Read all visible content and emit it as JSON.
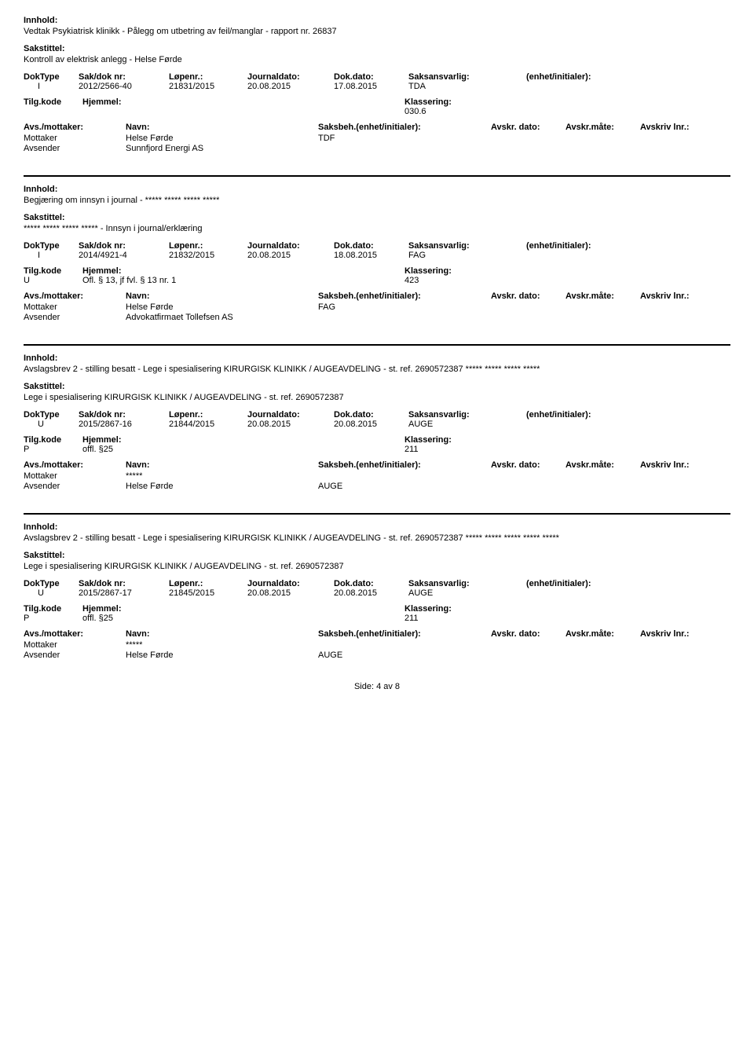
{
  "labels": {
    "innhold": "Innhold:",
    "sakstittel": "Sakstittel:",
    "doktype": "DokType",
    "sakdok": "Sak/dok nr:",
    "lopenr": "Løpenr.:",
    "journaldato": "Journaldato:",
    "dokdato": "Dok.dato:",
    "saksansvarlig": "Saksansvarlig:",
    "enhet": "(enhet/initialer):",
    "tilgkode": "Tilg.kode",
    "hjemmel": "Hjemmel:",
    "klassering": "Klassering:",
    "avsmottaker": "Avs./mottaker:",
    "navn": "Navn:",
    "saksbeh": "Saksbeh.(enhet/initialer):",
    "avskrdato": "Avskr. dato:",
    "avskrmate": "Avskr.måte:",
    "avskrlnr": "Avskriv lnr.:",
    "mottaker": "Mottaker",
    "avsender": "Avsender"
  },
  "records": [
    {
      "innhold": "Vedtak  Psykiatrisk klinikk - Pålegg om utbetring av feil/manglar - rapport nr. 26837",
      "sakstittel": "Kontroll av elektrisk anlegg - Helse Førde",
      "doktype": "I",
      "sakdok": "2012/2566-40",
      "lopenr": "21831/2015",
      "jdato": "20.08.2015",
      "ddato": "17.08.2015",
      "saksansv": "TDA",
      "tilg": "",
      "hjemmel": "",
      "klass": "030.6",
      "mottaker_name": "Helse Førde",
      "mottaker_code": "TDF",
      "avsender_name": "Sunnfjord Energi AS",
      "avsender_code": ""
    },
    {
      "innhold": "Begjæring om innsyn i journal - ***** ***** ***** *****",
      "sakstittel": "***** ***** ***** ***** - Innsyn i journal/erklæring",
      "doktype": "I",
      "sakdok": "2014/4921-4",
      "lopenr": "21832/2015",
      "jdato": "20.08.2015",
      "ddato": "18.08.2015",
      "saksansv": "FAG",
      "tilg": "U",
      "hjemmel": "Ofl. § 13, jf fvl. § 13 nr. 1",
      "klass": "423",
      "mottaker_name": "Helse Førde",
      "mottaker_code": "FAG",
      "avsender_name": "Advokatfirmaet Tollefsen AS",
      "avsender_code": ""
    },
    {
      "innhold": "Avslagsbrev 2 - stilling besatt - Lege i spesialisering KIRURGISK KLINIKK / AUGEAVDELING - st. ref. 2690572387 ***** ***** ***** *****",
      "sakstittel": "Lege i spesialisering KIRURGISK KLINIKK / AUGEAVDELING - st. ref. 2690572387",
      "doktype": "U",
      "sakdok": "2015/2867-16",
      "lopenr": "21844/2015",
      "jdato": "20.08.2015",
      "ddato": "20.08.2015",
      "saksansv": "AUGE",
      "tilg": "P",
      "hjemmel": "offl. §25",
      "klass": "211",
      "mottaker_name": "*****",
      "mottaker_code": "",
      "avsender_name": "Helse Førde",
      "avsender_code": "AUGE"
    },
    {
      "innhold": "Avslagsbrev 2 - stilling besatt - Lege i spesialisering KIRURGISK KLINIKK / AUGEAVDELING - st. ref. 2690572387 ***** ***** ***** ***** *****",
      "sakstittel": "Lege i spesialisering KIRURGISK KLINIKK / AUGEAVDELING - st. ref. 2690572387",
      "doktype": "U",
      "sakdok": "2015/2867-17",
      "lopenr": "21845/2015",
      "jdato": "20.08.2015",
      "ddato": "20.08.2015",
      "saksansv": "AUGE",
      "tilg": "P",
      "hjemmel": "offl. §25",
      "klass": "211",
      "mottaker_name": "*****",
      "mottaker_code": "",
      "avsender_name": "Helse Førde",
      "avsender_code": "AUGE"
    }
  ],
  "footer": "Side: 4 av 8"
}
